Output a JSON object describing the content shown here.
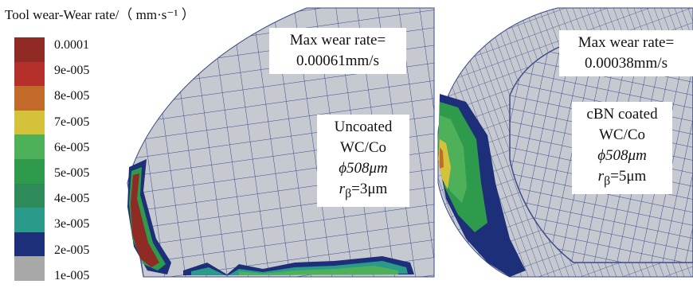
{
  "legend": {
    "title": "Tool wear-Wear rate/（ mm·s⁻¹ ）",
    "ticks": [
      "0.0001",
      "9e-005",
      "8e-005",
      "7e-005",
      "6e-005",
      "5e-005",
      "4e-005",
      "3e-005",
      "2e-005",
      "1e-005"
    ],
    "colors": [
      "#8f2a24",
      "#b5302a",
      "#c26a2a",
      "#d4c23a",
      "#4fb05a",
      "#2e9a4c",
      "#2f8a5a",
      "#2a9a8a",
      "#1e2f7a",
      "#a8a8a8"
    ]
  },
  "panels": [
    {
      "max_wear": [
        "Max wear rate=",
        "0.00061mm/s"
      ],
      "tool": [
        "Uncoated",
        "WC/Co",
        "ϕ508μm",
        "rβ=3μm"
      ],
      "radius_symbol": "r",
      "radius_sub": "β",
      "radius_value": "=3μm"
    },
    {
      "max_wear": [
        "Max wear rate=",
        "0.00038mm/s"
      ],
      "tool": [
        "cBN coated",
        "WC/Co",
        "ϕ508μm",
        "rβ=5μm"
      ],
      "radius_symbol": "r",
      "radius_sub": "β",
      "radius_value": "=5μm"
    }
  ],
  "colors": {
    "mesh_fill": "#c6c9cf",
    "mesh_line": "#3b4a8c",
    "background": "#ffffff"
  }
}
